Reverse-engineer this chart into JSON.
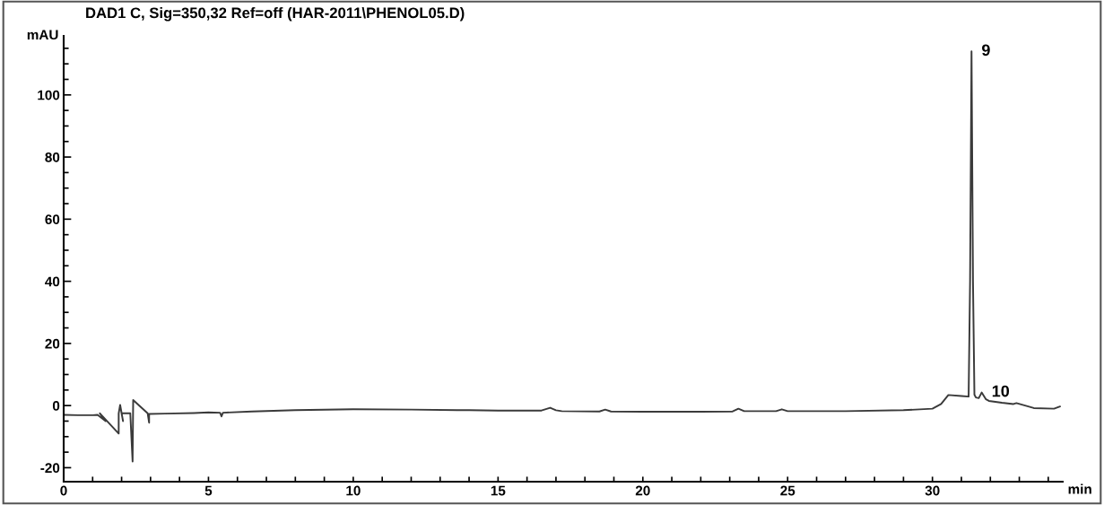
{
  "chart_data": {
    "type": "line",
    "title": "DAD1 C, Sig=350,32 Ref=off (HAR-2011\\PHENOL05.D)",
    "xlabel": "min",
    "ylabel": "mAU",
    "xlim": [
      0,
      34.5
    ],
    "ylim": [
      -24.5,
      119
    ],
    "xticks": [
      0,
      5,
      10,
      15,
      20,
      25,
      30
    ],
    "yticks": [
      -20,
      0,
      20,
      40,
      60,
      80,
      100
    ],
    "grid": false,
    "legend": false,
    "marker": "none",
    "line_style": "solid",
    "series": [
      {
        "color": "#3a3a3a",
        "x": [
          0,
          0.5,
          1.0,
          1.17,
          1.45,
          1.25,
          1.9,
          1.9,
          1.95,
          2.05,
          2.0,
          2.3,
          2.38,
          2.4,
          2.9,
          2.95,
          2.95,
          3.5,
          4.5,
          5.0,
          5.4,
          5.45,
          5.5,
          6.5,
          8,
          10,
          12,
          14,
          15,
          16.5,
          16.8,
          17.0,
          17.2,
          18.5,
          18.7,
          18.9,
          20,
          22,
          23.1,
          23.3,
          23.5,
          24.6,
          24.8,
          25.0,
          27,
          29,
          30.0,
          30.3,
          30.55,
          31.0,
          31.25,
          31.3,
          31.35,
          31.4,
          31.45,
          31.5,
          31.6,
          31.7,
          31.85,
          31.95,
          32.4,
          32.8,
          32.9,
          33.5,
          34.2,
          34.4
        ],
        "values": [
          -3,
          -3.1,
          -3.1,
          -3.0,
          -5.0,
          -2.5,
          -9.0,
          -2.5,
          0.2,
          -5.0,
          -2.5,
          -2.5,
          -18.0,
          1.8,
          -2.5,
          -5.5,
          -2.7,
          -2.6,
          -2.4,
          -2.2,
          -2.3,
          -3.5,
          -2.3,
          -1.9,
          -1.5,
          -1.2,
          -1.3,
          -1.5,
          -1.6,
          -1.6,
          -0.7,
          -1.5,
          -1.8,
          -1.9,
          -1.3,
          -1.9,
          -2.0,
          -2.0,
          -1.9,
          -1.0,
          -1.8,
          -1.8,
          -1.2,
          -1.8,
          -1.8,
          -1.5,
          -1.0,
          0.5,
          3.4,
          3.1,
          2.9,
          40,
          114,
          40,
          3.5,
          2.6,
          2.4,
          4.2,
          2.0,
          1.5,
          0.9,
          0.5,
          0.8,
          -0.8,
          -1.0,
          -0.3
        ]
      }
    ],
    "annotations": [
      {
        "text": "9",
        "x": 31.35,
        "y": 114
      },
      {
        "text": "10",
        "x": 31.7,
        "y": 4.2
      }
    ]
  }
}
